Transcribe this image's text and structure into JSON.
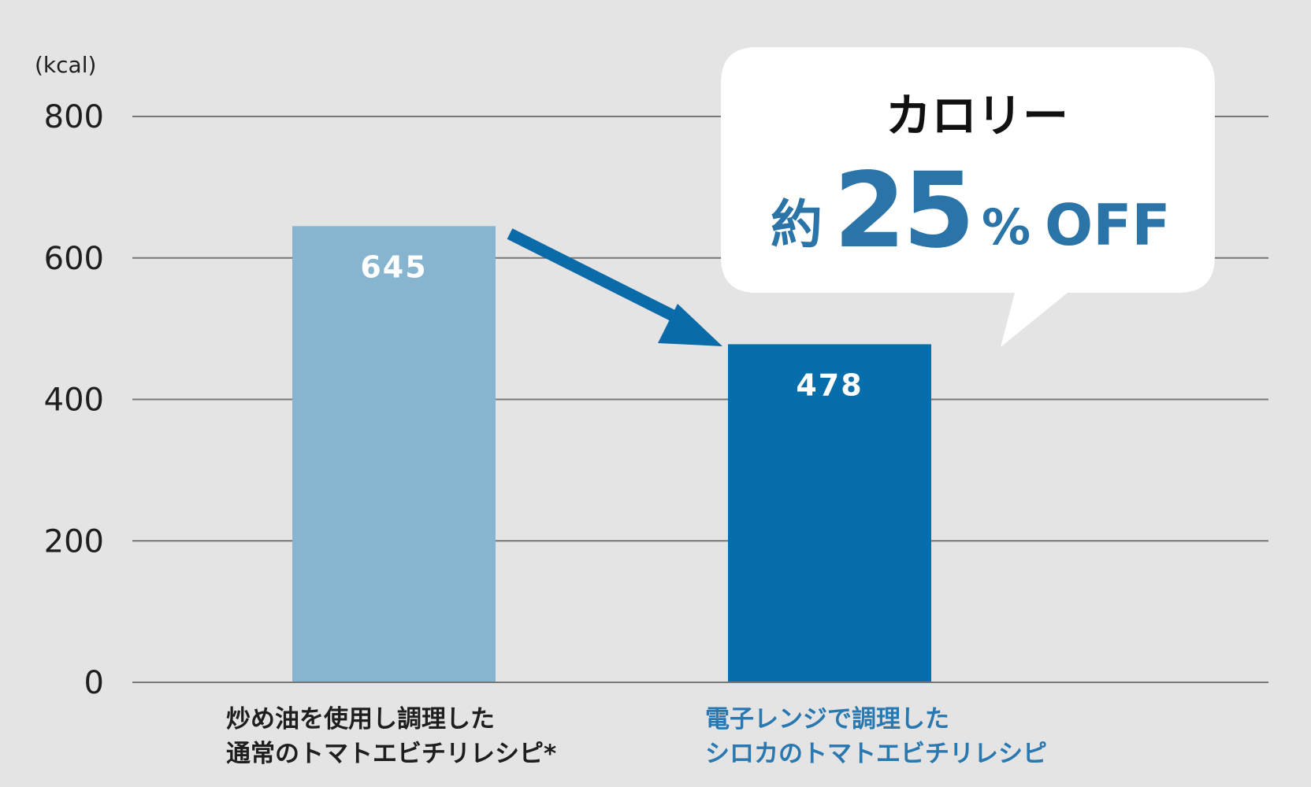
{
  "chart_data": {
    "type": "bar",
    "ylabel": "(kcal)",
    "ylim": [
      0,
      800
    ],
    "yticks": [
      "0",
      "200",
      "400",
      "600",
      "800"
    ],
    "grid": true,
    "categories": [
      [
        "炒め油を使用し調理した",
        "通常のトマトエビチリレシピ*"
      ],
      [
        "電子レンジで調理した",
        "シロカのトマトエビチリレシピ"
      ]
    ],
    "values": [
      645,
      478
    ],
    "value_labels": [
      "645",
      "478"
    ],
    "colors": [
      "#87b4cf",
      "#066fab"
    ],
    "category_label_colors": [
      "#1e1e1e",
      "#2a78b0"
    ],
    "gridline_color": "#777777",
    "annotation": {
      "title": "カロリー",
      "prefix": "約",
      "number": "25",
      "percent": "%",
      "suffix": "OFF",
      "arrow_color": "#0b6aa8"
    }
  }
}
